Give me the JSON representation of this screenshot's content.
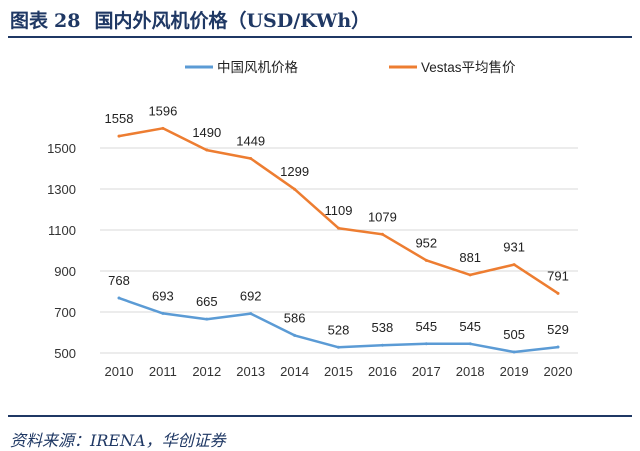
{
  "figure": {
    "label": "图表",
    "number": "28",
    "title": "国内外风机价格（USD/KWh）"
  },
  "source": "资料来源：IRENA，华创证券",
  "colors": {
    "title": "#1f3864",
    "domestic_series": "#5b9bd5",
    "vestas_series": "#ed7d31",
    "grid": "#d9d9d9",
    "axis_text": "#333333"
  },
  "chart_data": {
    "type": "line",
    "title": "",
    "xlabel": "",
    "ylabel": "",
    "x": [
      "2010",
      "2011",
      "2012",
      "2013",
      "2014",
      "2015",
      "2016",
      "2017",
      "2018",
      "2019",
      "2020"
    ],
    "yticks": [
      500,
      700,
      900,
      1100,
      1300,
      1500
    ],
    "ylim": [
      500,
      1700
    ],
    "grid": true,
    "legend_position": "top",
    "series": [
      {
        "name": "中国风机价格",
        "color": "#5b9bd5",
        "values": [
          768,
          693,
          665,
          692,
          586,
          528,
          538,
          545,
          545,
          505,
          529
        ]
      },
      {
        "name": "Vestas平均售价",
        "color": "#ed7d31",
        "values": [
          1558,
          1596,
          1490,
          1449,
          1299,
          1109,
          1079,
          952,
          881,
          931,
          791
        ]
      }
    ]
  }
}
